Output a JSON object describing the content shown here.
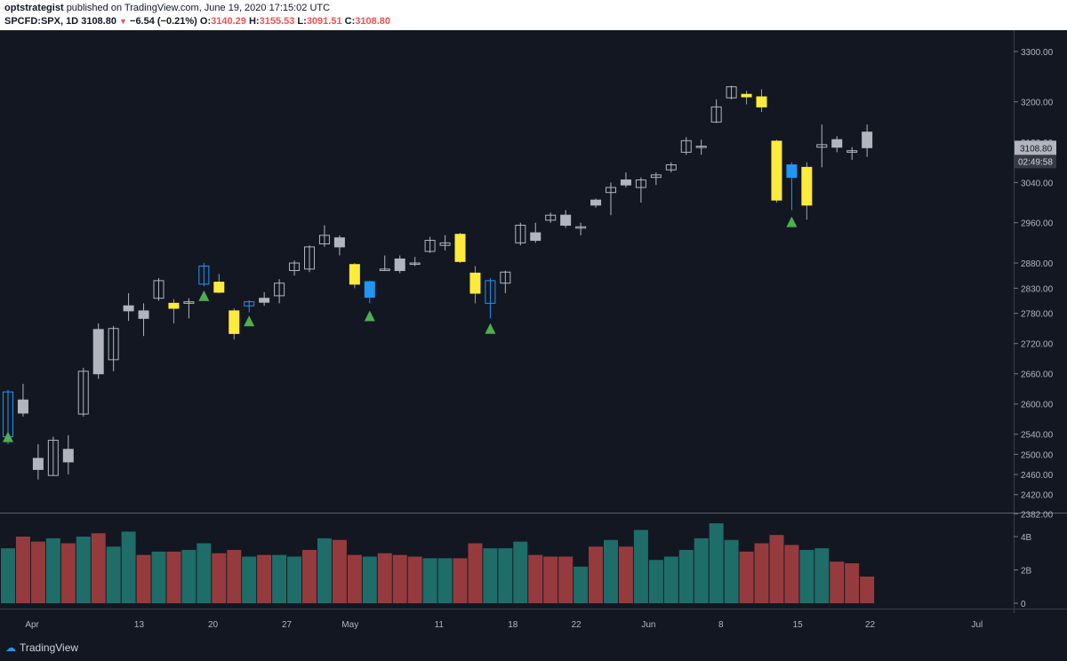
{
  "header": {
    "author": "optstrategist",
    "published": "published on TradingView.com, June 19, 2020 17:15:02 UTC",
    "symbol": "SPCFD:SPX, 1D",
    "last": "3108.80",
    "change": "−6.54 (−0.21%)",
    "o_label": "O:",
    "o_val": "3140.29",
    "h_label": "H:",
    "h_val": "3155.53",
    "l_label": "L:",
    "l_val": "3091.51",
    "c_label": "C:",
    "c_val": "3108.80"
  },
  "colors": {
    "background": "#131722",
    "grey_candle": "#b2b5be",
    "yellow_candle": "#ffeb3b",
    "blue_candle": "#2196f3",
    "triangle": "#4caf50",
    "vol_up": "#26a69a",
    "vol_down": "#ef5350",
    "price_tag": "#b2b5be"
  },
  "chart_data": {
    "type": "candlestick",
    "price_axis": {
      "ticks": [
        "3300.00",
        "3200.00",
        "3120.00",
        "3040.00",
        "2960.00",
        "2880.00",
        "2830.00",
        "2780.00",
        "2720.00",
        "2660.00",
        "2600.00",
        "2540.00",
        "2500.00",
        "2460.00",
        "2420.00",
        "2382.00"
      ],
      "tick_values": [
        3300,
        3200,
        3120,
        3040,
        2960,
        2880,
        2830,
        2780,
        2720,
        2660,
        2600,
        2540,
        2500,
        2460,
        2420,
        2382
      ]
    },
    "last_price_label": "3108.80",
    "countdown_label": "02:49:58",
    "volume_axis": {
      "ticks": [
        "4B",
        "2B",
        "0"
      ],
      "tick_values": [
        4000000000,
        2000000000,
        0
      ]
    },
    "x_labels": [
      "Apr",
      "13",
      "20",
      "27",
      "May",
      "11",
      "18",
      "22",
      "Jun",
      "8",
      "15",
      "22",
      "Jul"
    ],
    "x_label_bars": [
      1.6,
      8.7,
      13.6,
      18.5,
      22.7,
      28.6,
      33.5,
      37.7,
      42.5,
      47.3,
      52.4,
      57.2,
      64.3
    ],
    "candles": [
      {
        "i": 0,
        "o": 2535,
        "h": 2628,
        "l": 2520,
        "c": 2624,
        "s": "blue"
      },
      {
        "i": 1,
        "o": 2608,
        "h": 2640,
        "l": 2575,
        "c": 2582,
        "s": "grey"
      },
      {
        "i": 2,
        "o": 2492,
        "h": 2520,
        "l": 2450,
        "c": 2470,
        "s": "grey"
      },
      {
        "i": 3,
        "o": 2458,
        "h": 2535,
        "l": 2458,
        "c": 2528,
        "s": "hollow"
      },
      {
        "i": 4,
        "o": 2510,
        "h": 2538,
        "l": 2460,
        "c": 2485,
        "s": "grey"
      },
      {
        "i": 5,
        "o": 2580,
        "h": 2672,
        "l": 2575,
        "c": 2665,
        "s": "hollow"
      },
      {
        "i": 6,
        "o": 2748,
        "h": 2760,
        "l": 2650,
        "c": 2660,
        "s": "grey"
      },
      {
        "i": 7,
        "o": 2688,
        "h": 2755,
        "l": 2665,
        "c": 2750,
        "s": "hollow"
      },
      {
        "i": 8,
        "o": 2795,
        "h": 2820,
        "l": 2765,
        "c": 2785,
        "s": "grey"
      },
      {
        "i": 9,
        "o": 2785,
        "h": 2800,
        "l": 2735,
        "c": 2770,
        "s": "grey"
      },
      {
        "i": 10,
        "o": 2810,
        "h": 2850,
        "l": 2805,
        "c": 2845,
        "s": "hollow"
      },
      {
        "i": 11,
        "o": 2800,
        "h": 2808,
        "l": 2760,
        "c": 2790,
        "s": "yellow"
      },
      {
        "i": 12,
        "o": 2800,
        "h": 2810,
        "l": 2770,
        "c": 2803,
        "s": "hollow"
      },
      {
        "i": 13,
        "o": 2838,
        "h": 2880,
        "l": 2834,
        "c": 2874,
        "s": "blue"
      },
      {
        "i": 14,
        "o": 2842,
        "h": 2858,
        "l": 2820,
        "c": 2822,
        "s": "yellow"
      },
      {
        "i": 15,
        "o": 2785,
        "h": 2790,
        "l": 2728,
        "c": 2740,
        "s": "yellow"
      },
      {
        "i": 16,
        "o": 2795,
        "h": 2806,
        "l": 2782,
        "c": 2803,
        "s": "blue"
      },
      {
        "i": 17,
        "o": 2810,
        "h": 2822,
        "l": 2795,
        "c": 2802,
        "s": "grey"
      },
      {
        "i": 18,
        "o": 2815,
        "h": 2848,
        "l": 2800,
        "c": 2840,
        "s": "hollow"
      },
      {
        "i": 19,
        "o": 2865,
        "h": 2885,
        "l": 2855,
        "c": 2880,
        "s": "hollow"
      },
      {
        "i": 20,
        "o": 2868,
        "h": 2915,
        "l": 2862,
        "c": 2912,
        "s": "hollow"
      },
      {
        "i": 21,
        "o": 2918,
        "h": 2955,
        "l": 2912,
        "c": 2935,
        "s": "hollow"
      },
      {
        "i": 22,
        "o": 2930,
        "h": 2935,
        "l": 2895,
        "c": 2912,
        "s": "grey"
      },
      {
        "i": 23,
        "o": 2877,
        "h": 2880,
        "l": 2830,
        "c": 2838,
        "s": "yellow"
      },
      {
        "i": 24,
        "o": 2843,
        "h": 2845,
        "l": 2800,
        "c": 2812,
        "s": "blue"
      },
      {
        "i": 25,
        "o": 2865,
        "h": 2895,
        "l": 2865,
        "c": 2868,
        "s": "hollow"
      },
      {
        "i": 26,
        "o": 2888,
        "h": 2895,
        "l": 2860,
        "c": 2865,
        "s": "grey"
      },
      {
        "i": 27,
        "o": 2878,
        "h": 2892,
        "l": 2874,
        "c": 2880,
        "s": "hollow"
      },
      {
        "i": 28,
        "o": 2903,
        "h": 2932,
        "l": 2900,
        "c": 2925,
        "s": "hollow"
      },
      {
        "i": 29,
        "o": 2920,
        "h": 2935,
        "l": 2905,
        "c": 2915,
        "s": "hollow"
      },
      {
        "i": 30,
        "o": 2937,
        "h": 2940,
        "l": 2880,
        "c": 2883,
        "s": "yellow"
      },
      {
        "i": 31,
        "o": 2860,
        "h": 2874,
        "l": 2800,
        "c": 2820,
        "s": "yellow"
      },
      {
        "i": 32,
        "o": 2800,
        "h": 2850,
        "l": 2770,
        "c": 2845,
        "s": "blue"
      },
      {
        "i": 33,
        "o": 2840,
        "h": 2865,
        "l": 2820,
        "c": 2862,
        "s": "hollow"
      },
      {
        "i": 34,
        "o": 2920,
        "h": 2960,
        "l": 2915,
        "c": 2955,
        "s": "hollow"
      },
      {
        "i": 35,
        "o": 2940,
        "h": 2960,
        "l": 2920,
        "c": 2925,
        "s": "grey"
      },
      {
        "i": 36,
        "o": 2965,
        "h": 2980,
        "l": 2960,
        "c": 2975,
        "s": "hollow"
      },
      {
        "i": 37,
        "o": 2975,
        "h": 2985,
        "l": 2950,
        "c": 2955,
        "s": "grey"
      },
      {
        "i": 38,
        "o": 2950,
        "h": 2960,
        "l": 2935,
        "c": 2952,
        "s": "hollow"
      },
      {
        "i": 39,
        "o": 2995,
        "h": 3008,
        "l": 2990,
        "c": 3005,
        "s": "grey"
      },
      {
        "i": 40,
        "o": 3020,
        "h": 3040,
        "l": 2975,
        "c": 3030,
        "s": "hollow"
      },
      {
        "i": 41,
        "o": 3045,
        "h": 3060,
        "l": 3030,
        "c": 3035,
        "s": "grey"
      },
      {
        "i": 42,
        "o": 3030,
        "h": 3050,
        "l": 3000,
        "c": 3045,
        "s": "hollow"
      },
      {
        "i": 43,
        "o": 3050,
        "h": 3060,
        "l": 3035,
        "c": 3055,
        "s": "hollow"
      },
      {
        "i": 44,
        "o": 3065,
        "h": 3080,
        "l": 3060,
        "c": 3075,
        "s": "hollow"
      },
      {
        "i": 45,
        "o": 3100,
        "h": 3130,
        "l": 3095,
        "c": 3123,
        "s": "hollow"
      },
      {
        "i": 46,
        "o": 3110,
        "h": 3125,
        "l": 3095,
        "c": 3112,
        "s": "hollow"
      },
      {
        "i": 47,
        "o": 3160,
        "h": 3205,
        "l": 3158,
        "c": 3190,
        "s": "hollow"
      },
      {
        "i": 48,
        "o": 3208,
        "h": 3232,
        "l": 3205,
        "c": 3230,
        "s": "hollow"
      },
      {
        "i": 49,
        "o": 3215,
        "h": 3222,
        "l": 3195,
        "c": 3210,
        "s": "yellow"
      },
      {
        "i": 50,
        "o": 3210,
        "h": 3225,
        "l": 3180,
        "c": 3190,
        "s": "yellow"
      },
      {
        "i": 51,
        "o": 3122,
        "h": 3125,
        "l": 3000,
        "c": 3005,
        "s": "yellow"
      },
      {
        "i": 52,
        "o": 3075,
        "h": 3080,
        "l": 2985,
        "c": 3050,
        "s": "blue"
      },
      {
        "i": 53,
        "o": 3070,
        "h": 3080,
        "l": 2966,
        "c": 2995,
        "s": "yellow"
      },
      {
        "i": 54,
        "o": 3110,
        "h": 3155,
        "l": 3070,
        "c": 3115,
        "s": "hollow"
      },
      {
        "i": 55,
        "o": 3125,
        "h": 3132,
        "l": 3100,
        "c": 3110,
        "s": "grey"
      },
      {
        "i": 56,
        "o": 3100,
        "h": 3110,
        "l": 3085,
        "c": 3103,
        "s": "hollow"
      },
      {
        "i": 57,
        "o": 3140,
        "h": 3155,
        "l": 3091,
        "c": 3109,
        "s": "grey"
      }
    ],
    "signals": [
      {
        "i": 0,
        "price": 2535
      },
      {
        "i": 13,
        "price": 2815
      },
      {
        "i": 16,
        "price": 2765
      },
      {
        "i": 24,
        "price": 2775
      },
      {
        "i": 32,
        "price": 2750
      },
      {
        "i": 52,
        "price": 2962
      }
    ],
    "volume": [
      {
        "i": 0,
        "v": 3.3,
        "d": "up"
      },
      {
        "i": 1,
        "v": 4.0,
        "d": "down"
      },
      {
        "i": 2,
        "v": 3.7,
        "d": "down"
      },
      {
        "i": 3,
        "v": 3.9,
        "d": "up"
      },
      {
        "i": 4,
        "v": 3.6,
        "d": "down"
      },
      {
        "i": 5,
        "v": 4.0,
        "d": "up"
      },
      {
        "i": 6,
        "v": 4.2,
        "d": "down"
      },
      {
        "i": 7,
        "v": 3.4,
        "d": "up"
      },
      {
        "i": 8,
        "v": 4.3,
        "d": "up"
      },
      {
        "i": 9,
        "v": 2.9,
        "d": "down"
      },
      {
        "i": 10,
        "v": 3.1,
        "d": "up"
      },
      {
        "i": 11,
        "v": 3.1,
        "d": "down"
      },
      {
        "i": 12,
        "v": 3.2,
        "d": "up"
      },
      {
        "i": 13,
        "v": 3.6,
        "d": "up"
      },
      {
        "i": 14,
        "v": 3.0,
        "d": "down"
      },
      {
        "i": 15,
        "v": 3.2,
        "d": "down"
      },
      {
        "i": 16,
        "v": 2.8,
        "d": "up"
      },
      {
        "i": 17,
        "v": 2.9,
        "d": "down"
      },
      {
        "i": 18,
        "v": 2.9,
        "d": "up"
      },
      {
        "i": 19,
        "v": 2.8,
        "d": "up"
      },
      {
        "i": 20,
        "v": 3.2,
        "d": "down"
      },
      {
        "i": 21,
        "v": 3.9,
        "d": "up"
      },
      {
        "i": 22,
        "v": 3.8,
        "d": "down"
      },
      {
        "i": 23,
        "v": 2.9,
        "d": "down"
      },
      {
        "i": 24,
        "v": 2.8,
        "d": "up"
      },
      {
        "i": 25,
        "v": 3.0,
        "d": "down"
      },
      {
        "i": 26,
        "v": 2.9,
        "d": "down"
      },
      {
        "i": 27,
        "v": 2.8,
        "d": "down"
      },
      {
        "i": 28,
        "v": 2.7,
        "d": "up"
      },
      {
        "i": 29,
        "v": 2.7,
        "d": "up"
      },
      {
        "i": 30,
        "v": 2.7,
        "d": "down"
      },
      {
        "i": 31,
        "v": 3.6,
        "d": "down"
      },
      {
        "i": 32,
        "v": 3.3,
        "d": "up"
      },
      {
        "i": 33,
        "v": 3.3,
        "d": "up"
      },
      {
        "i": 34,
        "v": 3.7,
        "d": "up"
      },
      {
        "i": 35,
        "v": 2.9,
        "d": "down"
      },
      {
        "i": 36,
        "v": 2.8,
        "d": "down"
      },
      {
        "i": 37,
        "v": 2.8,
        "d": "down"
      },
      {
        "i": 38,
        "v": 2.2,
        "d": "up"
      },
      {
        "i": 39,
        "v": 3.4,
        "d": "down"
      },
      {
        "i": 40,
        "v": 3.8,
        "d": "up"
      },
      {
        "i": 41,
        "v": 3.4,
        "d": "down"
      },
      {
        "i": 42,
        "v": 4.4,
        "d": "up"
      },
      {
        "i": 43,
        "v": 2.6,
        "d": "up"
      },
      {
        "i": 44,
        "v": 2.8,
        "d": "up"
      },
      {
        "i": 45,
        "v": 3.2,
        "d": "up"
      },
      {
        "i": 46,
        "v": 3.9,
        "d": "up"
      },
      {
        "i": 47,
        "v": 4.8,
        "d": "up"
      },
      {
        "i": 48,
        "v": 3.8,
        "d": "up"
      },
      {
        "i": 49,
        "v": 3.1,
        "d": "down"
      },
      {
        "i": 50,
        "v": 3.6,
        "d": "down"
      },
      {
        "i": 51,
        "v": 4.1,
        "d": "down"
      },
      {
        "i": 52,
        "v": 3.5,
        "d": "down"
      },
      {
        "i": 53,
        "v": 3.2,
        "d": "up"
      },
      {
        "i": 54,
        "v": 3.3,
        "d": "up"
      },
      {
        "i": 55,
        "v": 2.5,
        "d": "down"
      },
      {
        "i": 56,
        "v": 2.4,
        "d": "down"
      },
      {
        "i": 57,
        "v": 1.6,
        "d": "down"
      }
    ]
  },
  "footer": {
    "brand": "TradingView"
  }
}
